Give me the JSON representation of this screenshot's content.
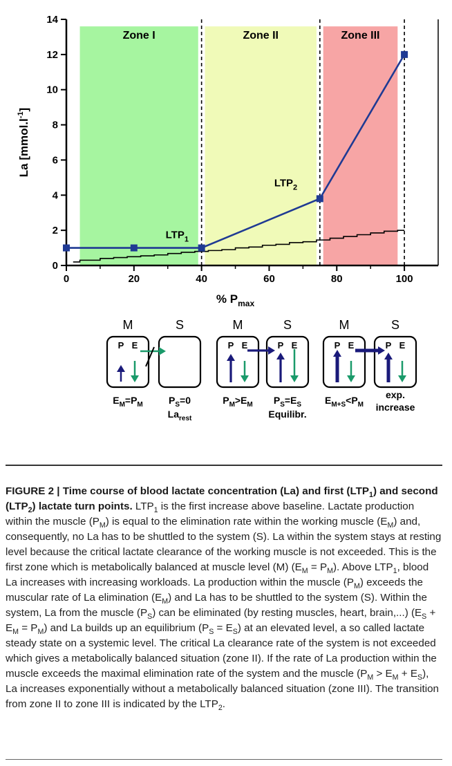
{
  "chart_data": {
    "type": "line",
    "xlabel_main": "% P",
    "xlabel_sub": "max",
    "ylabel": "La [mmol.l",
    "ylabel_sup": "-1",
    "ylabel_end": "]",
    "xlim": [
      0,
      110
    ],
    "ylim": [
      0,
      14
    ],
    "xticks": [
      0,
      20,
      40,
      60,
      80,
      100
    ],
    "yticks": [
      0,
      2,
      4,
      6,
      8,
      10,
      12,
      14
    ],
    "grid": false,
    "zones": [
      {
        "label": "Zone I",
        "x": [
          4,
          39
        ],
        "color": "#a6f5a0"
      },
      {
        "label": "Zone II",
        "x": [
          41,
          74
        ],
        "color": "#f0fab8"
      },
      {
        "label": "Zone III",
        "x": [
          76,
          98
        ],
        "color": "#f7a5a5"
      }
    ],
    "vlines": [
      40,
      75,
      100
    ],
    "series": [
      {
        "values": [
          [
            0,
            1
          ],
          [
            20,
            1
          ],
          [
            40,
            1
          ],
          [
            75,
            3.8
          ],
          [
            100,
            12
          ]
        ],
        "color": "#1f3a93"
      }
    ],
    "step_line": {
      "x": [
        2,
        4,
        10,
        14,
        18,
        22,
        26,
        30,
        34,
        38,
        42,
        46,
        50,
        54,
        58,
        62,
        66,
        70,
        74,
        78,
        82,
        86,
        90,
        94,
        98,
        100
      ],
      "y": [
        0.2,
        0.3,
        0.4,
        0.45,
        0.5,
        0.55,
        0.6,
        0.68,
        0.75,
        0.8,
        0.85,
        0.9,
        1.0,
        1.05,
        1.15,
        1.2,
        1.3,
        1.35,
        1.45,
        1.55,
        1.65,
        1.75,
        1.85,
        1.95,
        2.0,
        2.0
      ],
      "color": "#000000"
    },
    "annotations": [
      {
        "text": "LTP",
        "sub": "1",
        "x": 40,
        "y": 1
      },
      {
        "text": "LTP",
        "sub": "2",
        "x": 75,
        "y": 3.8
      }
    ]
  },
  "diagram": {
    "headers": [
      "M",
      "S",
      "M",
      "S",
      "M",
      "S"
    ],
    "box_letters": {
      "p": "P",
      "e": "E"
    },
    "labels": [
      {
        "main": "E",
        "sub": "M",
        "mid": "=P",
        "sub2": "M",
        "line2": "",
        "sub3": ""
      },
      {
        "main": "P",
        "sub": "S",
        "mid": "=0",
        "sub2": "",
        "line2": "La",
        "sub3": "rest"
      },
      {
        "main": "P",
        "sub": "M",
        "mid": ">E",
        "sub2": "M",
        "line2": "",
        "sub3": ""
      },
      {
        "main": "P",
        "sub": "S",
        "mid": "=E",
        "sub2": "S",
        "line2": "Equilibr.",
        "sub3": ""
      },
      {
        "main": "E",
        "sub": "M+S",
        "mid": "<P",
        "sub2": "M",
        "line2": "",
        "sub3": ""
      },
      {
        "main": "exp.",
        "sub": "",
        "mid": "",
        "sub2": "",
        "line2": "increase",
        "sub3": ""
      }
    ],
    "colors": {
      "blue": "#1a1a7a",
      "green": "#1a9a6a"
    }
  },
  "caption": {
    "figure_label": "FIGURE 2 | Time course of blood lactate concentration (La) and first (LTP",
    "s1": "1",
    "p1": ") and second (LTP",
    "s2": "2",
    "p2": ") lactate turn points.",
    "t01": " LTP",
    "t01s": "1",
    "t02": " is the first increase above baseline. Lactate production within the muscle (P",
    "t02s": "M",
    "t03": ") is equal to the elimination rate within the working muscle (E",
    "t03s": "M",
    "t04": ") and, consequently, no La has to be shuttled to the system (S). La within the system stays at resting level because the critical lactate clearance of the working muscle is not exceeded. This is the first zone which is metabolically balanced at muscle level (M) (E",
    "t04s": "M",
    "t05": " = P",
    "t05s": "M",
    "t06": "). Above LTP",
    "t06s": "1",
    "t07": ", blood La increases with increasing workloads. La production within the muscle (P",
    "t07s": "M",
    "t08": ") exceeds the muscular rate of La elimination (E",
    "t08s": "M",
    "t09": ") and La has to be shuttled to the system (S). Within the system, La from the muscle (P",
    "t09s": "S",
    "t10": ") can be eliminated (by resting muscles, heart, brain,...) (E",
    "t10s": "S",
    "t11": " + E",
    "t11s": "M",
    "t12": " = P",
    "t12s": "M",
    "t13": ") and La builds up an equilibrium (P",
    "t13s": "S",
    "t14": " = E",
    "t14s": "S",
    "t15": ") at an elevated level, a so called lactate steady state on a systemic level. The critical La clearance rate of the system is not exceeded which gives a metabolically balanced situation (zone II). If the rate of La production within the muscle exceeds the maximal elimination rate of the system and the muscle (P",
    "t15s": "M",
    "t16": " > E",
    "t16s": "M",
    "t17": " + E",
    "t17s": "S",
    "t18": "), La increases exponentially without a metabolically balanced situation (zone III). The transition from zone II to zone III is indicated by the LTP",
    "t18s": "2",
    "t19": "."
  }
}
